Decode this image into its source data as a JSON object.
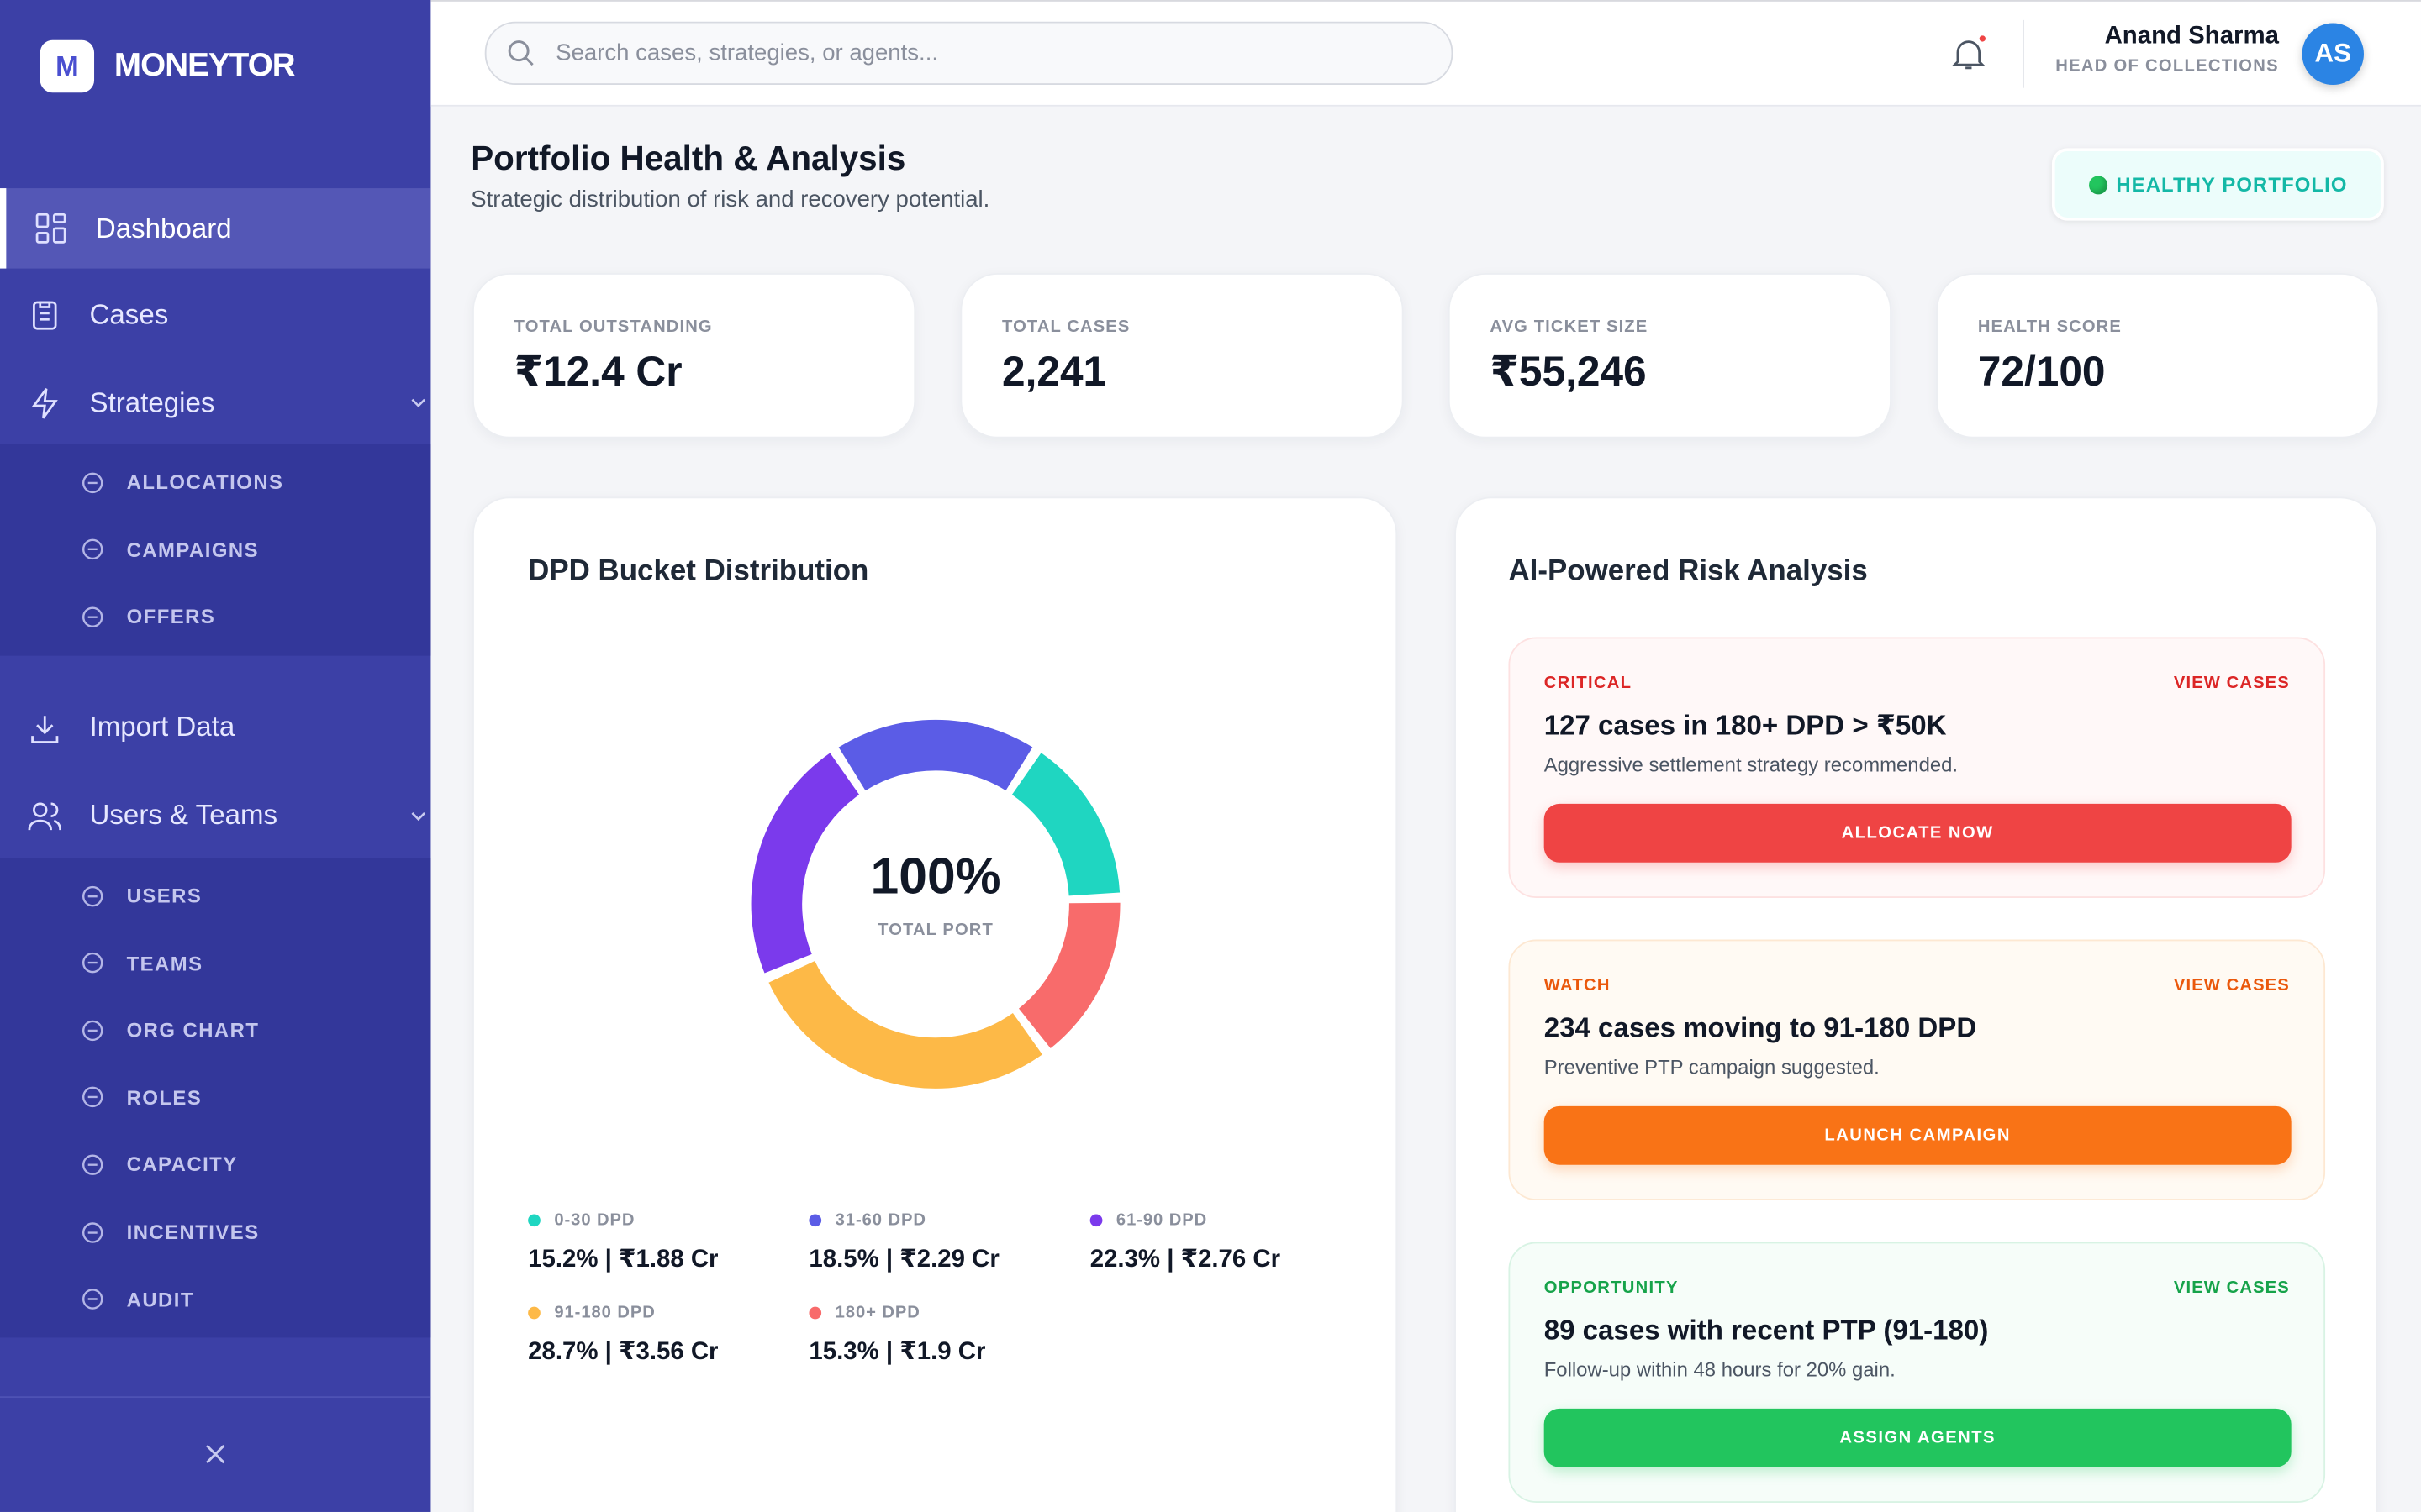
{
  "brand": {
    "logo": "M",
    "name": "MONEYTOR"
  },
  "nav": [
    {
      "label": "Dashboard"
    },
    {
      "label": "Cases"
    },
    {
      "label": "Strategies",
      "children": [
        "ALLOCATIONS",
        "CAMPAIGNS",
        "OFFERS"
      ]
    },
    {
      "label": "Import Data"
    },
    {
      "label": "Users & Teams",
      "children": [
        "USERS",
        "TEAMS",
        "ORG CHART",
        "ROLES",
        "CAPACITY",
        "INCENTIVES",
        "AUDIT"
      ]
    }
  ],
  "search": {
    "placeholder": "Search cases, strategies, or agents..."
  },
  "user": {
    "name": "Anand Sharma",
    "role": "HEAD OF COLLECTIONS",
    "initials": "AS"
  },
  "header": {
    "title": "Portfolio Health & Analysis",
    "subtitle": "Strategic distribution of risk and recovery potential.",
    "status": "HEALTHY PORTFOLIO"
  },
  "kpis": [
    {
      "label": "TOTAL OUTSTANDING",
      "value": "₹12.4 Cr"
    },
    {
      "label": "TOTAL CASES",
      "value": "2,241"
    },
    {
      "label": "AVG TICKET SIZE",
      "value": "₹55,246"
    },
    {
      "label": "HEALTH SCORE",
      "value": "72/100"
    }
  ],
  "chart_data": {
    "type": "donut",
    "title": "DPD Bucket Distribution",
    "center_value": "100%",
    "center_label": "TOTAL PORT",
    "categories": [
      "0-30 DPD",
      "31-60 DPD",
      "61-90 DPD",
      "91-180 DPD",
      "180+ DPD"
    ],
    "values": [
      15.2,
      18.5,
      22.3,
      28.7,
      15.3
    ],
    "value_labels": [
      "15.2% | ₹1.88 Cr",
      "18.5% | ₹2.29 Cr",
      "22.3% | ₹2.76 Cr",
      "28.7% | ₹3.56 Cr",
      "15.3% | ₹1.9 Cr"
    ],
    "colors": [
      "#1fd6c1",
      "#5b5ce6",
      "#7b3aec",
      "#fdb947",
      "#f86b6b"
    ]
  },
  "risk": {
    "title": "AI-Powered Risk Analysis",
    "cards": [
      {
        "level": "CRITICAL",
        "link": "VIEW CASES",
        "headline": "127 cases in 180+ DPD > ₹50K",
        "detail": "Aggressive settlement strategy recommended.",
        "action": "ALLOCATE NOW"
      },
      {
        "level": "WATCH",
        "link": "VIEW CASES",
        "headline": "234 cases moving to 91-180 DPD",
        "detail": "Preventive PTP campaign suggested.",
        "action": "LAUNCH CAMPAIGN"
      },
      {
        "level": "OPPORTUNITY",
        "link": "VIEW CASES",
        "headline": "89 cases with recent PTP (91-180)",
        "detail": "Follow-up within 48 hours for 20% gain.",
        "action": "ASSIGN AGENTS"
      }
    ]
  }
}
